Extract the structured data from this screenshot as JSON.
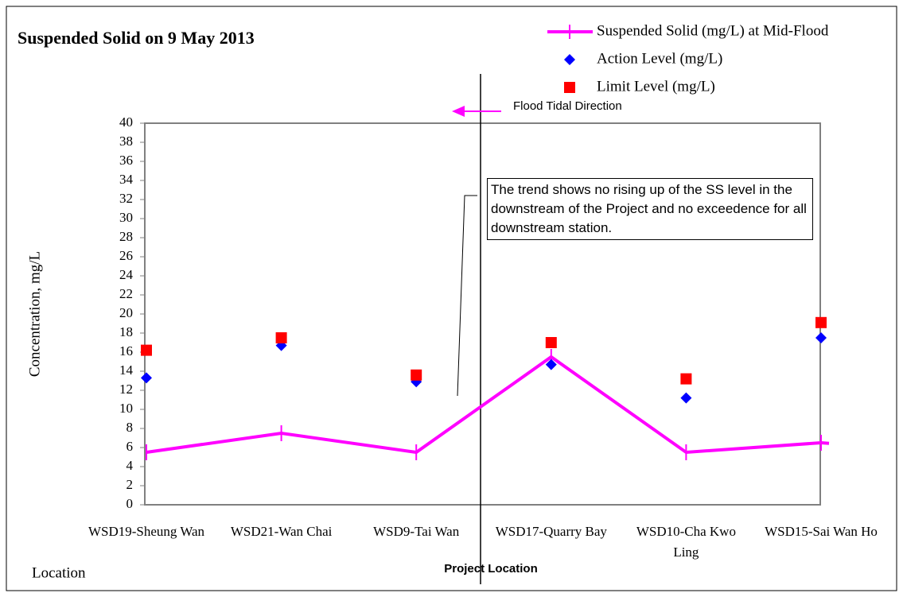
{
  "chart_data": {
    "type": "line",
    "title": "Suspended Solid on 9 May 2013",
    "y_label": "Concentration, mg/L",
    "x_label": "Location",
    "categories": [
      "WSD19-Sheung Wan",
      "WSD21-Wan Chai",
      "WSD9-Tai Wan",
      "WSD17-Quarry Bay",
      "WSD10-Cha Kwo Ling",
      "WSD15-Sai Wan Ho"
    ],
    "series": [
      {
        "name": "Suspended Solid (mg/L) at Mid-Flood",
        "color": "#ff00ff",
        "marker": "line",
        "values": [
          5.5,
          7.5,
          5.5,
          15.5,
          5.5,
          6.5
        ]
      },
      {
        "name": "Action Level (mg/L)",
        "color": "#0000ff",
        "marker": "diamond",
        "values": [
          13.3,
          16.7,
          12.9,
          14.7,
          11.2,
          17.5
        ]
      },
      {
        "name": "Limit Level (mg/L)",
        "color": "#ff0000",
        "marker": "square",
        "values": [
          16.2,
          17.5,
          13.6,
          17.0,
          13.2,
          19.1
        ]
      }
    ],
    "ylim": [
      0,
      40
    ],
    "yticks": [
      0,
      2,
      4,
      6,
      8,
      10,
      12,
      14,
      16,
      18,
      20,
      22,
      24,
      26,
      28,
      30,
      32,
      34,
      36,
      38,
      40
    ],
    "grid": false,
    "legend": "top-right",
    "annotations": {
      "flood": "Flood Tidal Direction",
      "project": "Project Location",
      "note": "The trend shows no rising up of the SS level in the downstream of the Project and no exceedence for all downstream station."
    }
  }
}
